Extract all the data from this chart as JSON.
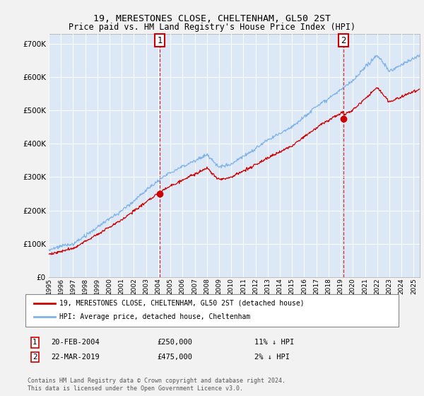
{
  "title": "19, MERESTONES CLOSE, CHELTENHAM, GL50 2ST",
  "subtitle": "Price paid vs. HM Land Registry's House Price Index (HPI)",
  "background_color": "#e8f0f8",
  "plot_bg_color": "#dce8f5",
  "grid_color": "#ffffff",
  "hpi_color": "#7fb3e8",
  "price_color": "#cc0000",
  "purchase_1_date": "20-FEB-2004",
  "purchase_1_price": 250000,
  "purchase_1_label": "11% ↓ HPI",
  "purchase_2_date": "22-MAR-2019",
  "purchase_2_price": 475000,
  "purchase_2_label": "2% ↓ HPI",
  "purchase_1_year": 2004.13,
  "purchase_2_year": 2019.22,
  "ylim": [
    0,
    730000
  ],
  "xlim": [
    1995.0,
    2025.5
  ],
  "yticks": [
    0,
    100000,
    200000,
    300000,
    400000,
    500000,
    600000,
    700000
  ],
  "xtick_years": [
    1995,
    1996,
    1997,
    1998,
    1999,
    2000,
    2001,
    2002,
    2003,
    2004,
    2005,
    2006,
    2007,
    2008,
    2009,
    2010,
    2011,
    2012,
    2013,
    2014,
    2015,
    2016,
    2017,
    2018,
    2019,
    2020,
    2021,
    2022,
    2023,
    2024,
    2025
  ],
  "legend_label_red": "19, MERESTONES CLOSE, CHELTENHAM, GL50 2ST (detached house)",
  "legend_label_blue": "HPI: Average price, detached house, Cheltenham",
  "footnote_line1": "Contains HM Land Registry data © Crown copyright and database right 2024.",
  "footnote_line2": "This data is licensed under the Open Government Licence v3.0."
}
